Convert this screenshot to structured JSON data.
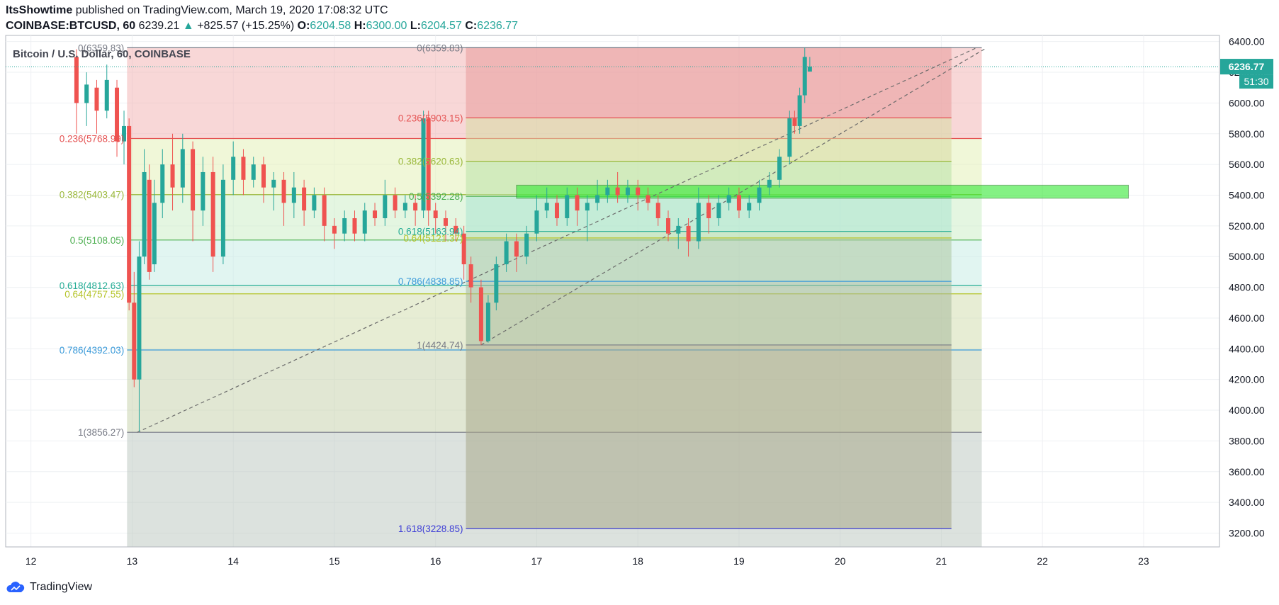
{
  "header": {
    "author": "ItsShowtime",
    "published_text": "published on TradingView.com, March 19, 2020 17:08:32 UTC",
    "symbol": "COINBASE:BTCUSD, 60",
    "last_price": "6239.21",
    "change_arrow": "▲",
    "change": "+825.57 (+15.25%)",
    "o_label": "O:",
    "o_value": "6204.58",
    "h_label": "H:",
    "h_value": "6300.00",
    "l_label": "L:",
    "l_value": "6204.57",
    "c_label": "C:",
    "c_value": "6236.77"
  },
  "chart_data": {
    "type": "candlestick",
    "title": "Bitcoin / U.S. Dollar, 60, COINBASE",
    "x_ticks": [
      "12",
      "13",
      "14",
      "15",
      "16",
      "17",
      "18",
      "19",
      "20",
      "21",
      "22",
      "23"
    ],
    "x_range": [
      11.75,
      23.75
    ],
    "y_ticks": [
      "3200.00",
      "3400.00",
      "3600.00",
      "3800.00",
      "4000.00",
      "4200.00",
      "4400.00",
      "4600.00",
      "4800.00",
      "5000.00",
      "5200.00",
      "5400.00",
      "5600.00",
      "5800.00",
      "6000.00",
      "6200.00",
      "6400.00"
    ],
    "y_range": [
      3110,
      6440
    ],
    "grid": true,
    "current_price_label": "6236.77",
    "current_price": 6236.77,
    "countdown_label": "51:30",
    "fib_retracement_1": {
      "x_start": 12.95,
      "x_end": 21.4,
      "levels": [
        {
          "label": "0(6359.83)",
          "price": 6359.83,
          "color": "#787b86"
        },
        {
          "label": "0.236(5768.99)",
          "price": 5768.99,
          "color": "#e55353"
        },
        {
          "label": "0.382(5403.47)",
          "price": 5403.47,
          "color": "#9ab83a"
        },
        {
          "label": "0.5(5108.05)",
          "price": 5108.05,
          "color": "#4caf50"
        },
        {
          "label": "0.618(4812.63)",
          "price": 4812.63,
          "color": "#22ab94"
        },
        {
          "label": "0.64(4757.55)",
          "price": 4757.55,
          "color": "#b5c42a"
        },
        {
          "label": "0.786(4392.03)",
          "price": 4392.03,
          "color": "#3a9ad9"
        },
        {
          "label": "1(3856.27)",
          "price": 3856.27,
          "color": "#787b86"
        }
      ]
    },
    "fib_retracement_2": {
      "x_start": 16.3,
      "x_end": 21.1,
      "levels": [
        {
          "label": "0(6359.83)",
          "price": 6359.83,
          "color": "#787b86"
        },
        {
          "label": "0.236(5903.15)",
          "price": 5903.15,
          "color": "#e55353"
        },
        {
          "label": "0.382(5620.63)",
          "price": 5620.63,
          "color": "#9ab83a"
        },
        {
          "label": "0.5(5392.28)",
          "price": 5392.28,
          "color": "#4caf50"
        },
        {
          "label": "0.618(5163.94)",
          "price": 5163.94,
          "color": "#22ab94"
        },
        {
          "label": "0.64(5121.37)",
          "price": 5121.37,
          "color": "#b5c42a"
        },
        {
          "label": "0.786(4838.85)",
          "price": 4838.85,
          "color": "#3a9ad9"
        },
        {
          "label": "1(4424.74)",
          "price": 4424.74,
          "color": "#787b86"
        },
        {
          "label": "1.618(3228.85)",
          "price": 3228.85,
          "color": "#3f3fd6"
        }
      ]
    },
    "highlight_zone": {
      "x_start": 16.8,
      "x_end": 22.85,
      "y_low": 5380,
      "y_high": 5465,
      "color": "#33e833"
    },
    "trend_lines": [
      {
        "from": [
          13.05,
          3856
        ],
        "to": [
          21.35,
          6360
        ]
      },
      {
        "from": [
          16.45,
          4425
        ],
        "to": [
          21.45,
          6360
        ]
      }
    ],
    "candles": [
      [
        12.45,
        6300,
        6000,
        5800,
        6350
      ],
      [
        12.55,
        6000,
        6120,
        5850,
        6200
      ],
      [
        12.65,
        6100,
        5950,
        5800,
        6150
      ],
      [
        12.75,
        5950,
        6150,
        5900,
        6250
      ],
      [
        12.85,
        6100,
        5750,
        5650,
        6150
      ],
      [
        12.92,
        5750,
        5850,
        5600,
        5950
      ],
      [
        12.97,
        5850,
        4700,
        4650,
        5900
      ],
      [
        13.02,
        4700,
        4200,
        4150,
        4900
      ],
      [
        13.07,
        4200,
        5000,
        3860,
        5100
      ],
      [
        13.12,
        5000,
        5550,
        4950,
        5700
      ],
      [
        13.17,
        5500,
        4900,
        4850,
        5600
      ],
      [
        13.22,
        4950,
        5350,
        4900,
        5500
      ],
      [
        13.3,
        5350,
        5600,
        5250,
        5700
      ],
      [
        13.4,
        5600,
        5450,
        5300,
        5800
      ],
      [
        13.5,
        5450,
        5700,
        5350,
        5800
      ],
      [
        13.6,
        5700,
        5300,
        5100,
        5750
      ],
      [
        13.7,
        5300,
        5550,
        5200,
        5650
      ],
      [
        13.8,
        5550,
        5000,
        4900,
        5650
      ],
      [
        13.9,
        5000,
        5500,
        4950,
        5600
      ],
      [
        14.0,
        5500,
        5650,
        5400,
        5750
      ],
      [
        14.1,
        5650,
        5500,
        5400,
        5700
      ],
      [
        14.2,
        5500,
        5600,
        5450,
        5650
      ],
      [
        14.3,
        5600,
        5450,
        5350,
        5650
      ],
      [
        14.4,
        5450,
        5500,
        5300,
        5550
      ],
      [
        14.5,
        5500,
        5350,
        5200,
        5550
      ],
      [
        14.6,
        5350,
        5450,
        5250,
        5550
      ],
      [
        14.7,
        5450,
        5300,
        5200,
        5500
      ],
      [
        14.8,
        5300,
        5400,
        5250,
        5450
      ],
      [
        14.9,
        5400,
        5200,
        5100,
        5450
      ],
      [
        15.0,
        5200,
        5150,
        5050,
        5250
      ],
      [
        15.1,
        5150,
        5250,
        5100,
        5300
      ],
      [
        15.2,
        5250,
        5150,
        5100,
        5300
      ],
      [
        15.3,
        5150,
        5300,
        5100,
        5350
      ],
      [
        15.4,
        5300,
        5250,
        5200,
        5350
      ],
      [
        15.5,
        5250,
        5400,
        5200,
        5500
      ],
      [
        15.6,
        5400,
        5300,
        5250,
        5450
      ],
      [
        15.7,
        5300,
        5350,
        5250,
        5400
      ],
      [
        15.8,
        5350,
        5300,
        5200,
        5400
      ],
      [
        15.88,
        5300,
        5900,
        5250,
        5950
      ],
      [
        15.93,
        5900,
        5300,
        5200,
        5950
      ],
      [
        16.0,
        5300,
        5250,
        5150,
        5350
      ],
      [
        16.1,
        5250,
        5200,
        5100,
        5300
      ],
      [
        16.2,
        5200,
        5150,
        5100,
        5250
      ],
      [
        16.28,
        5150,
        4950,
        4850,
        5200
      ],
      [
        16.35,
        4950,
        4800,
        4700,
        5000
      ],
      [
        16.45,
        4800,
        4450,
        4425,
        4850
      ],
      [
        16.52,
        4450,
        4700,
        4440,
        4750
      ],
      [
        16.6,
        4700,
        4950,
        4650,
        5000
      ],
      [
        16.7,
        4950,
        5100,
        4900,
        5150
      ],
      [
        16.8,
        5100,
        5000,
        4900,
        5150
      ],
      [
        16.9,
        5000,
        5150,
        4950,
        5200
      ],
      [
        17.0,
        5150,
        5300,
        5100,
        5400
      ],
      [
        17.1,
        5300,
        5350,
        5250,
        5450
      ],
      [
        17.2,
        5350,
        5250,
        5200,
        5400
      ],
      [
        17.3,
        5250,
        5400,
        5200,
        5450
      ],
      [
        17.4,
        5400,
        5300,
        5200,
        5450
      ],
      [
        17.5,
        5300,
        5350,
        5100,
        5400
      ],
      [
        17.6,
        5350,
        5400,
        5300,
        5500
      ],
      [
        17.7,
        5400,
        5450,
        5350,
        5500
      ],
      [
        17.8,
        5450,
        5400,
        5350,
        5550
      ],
      [
        17.9,
        5400,
        5450,
        5350,
        5500
      ],
      [
        18.0,
        5450,
        5400,
        5300,
        5500
      ],
      [
        18.1,
        5400,
        5350,
        5300,
        5450
      ],
      [
        18.2,
        5350,
        5250,
        5200,
        5400
      ],
      [
        18.3,
        5250,
        5150,
        5100,
        5300
      ],
      [
        18.4,
        5150,
        5200,
        5050,
        5250
      ],
      [
        18.5,
        5200,
        5100,
        5000,
        5250
      ],
      [
        18.6,
        5100,
        5350,
        5050,
        5450
      ],
      [
        18.7,
        5350,
        5250,
        5150,
        5400
      ],
      [
        18.8,
        5250,
        5350,
        5200,
        5400
      ],
      [
        18.9,
        5350,
        5400,
        5300,
        5450
      ],
      [
        19.0,
        5400,
        5300,
        5250,
        5450
      ],
      [
        19.1,
        5300,
        5350,
        5250,
        5400
      ],
      [
        19.2,
        5350,
        5450,
        5300,
        5500
      ],
      [
        19.3,
        5450,
        5500,
        5400,
        5550
      ],
      [
        19.4,
        5500,
        5650,
        5450,
        5700
      ],
      [
        19.5,
        5650,
        5900,
        5600,
        5950
      ],
      [
        19.55,
        5900,
        5850,
        5800,
        5950
      ],
      [
        19.6,
        5850,
        6050,
        5800,
        6100
      ],
      [
        19.65,
        6050,
        6300,
        6000,
        6360
      ],
      [
        19.7,
        6204.58,
        6236.77,
        6204.57,
        6300
      ]
    ]
  }
}
